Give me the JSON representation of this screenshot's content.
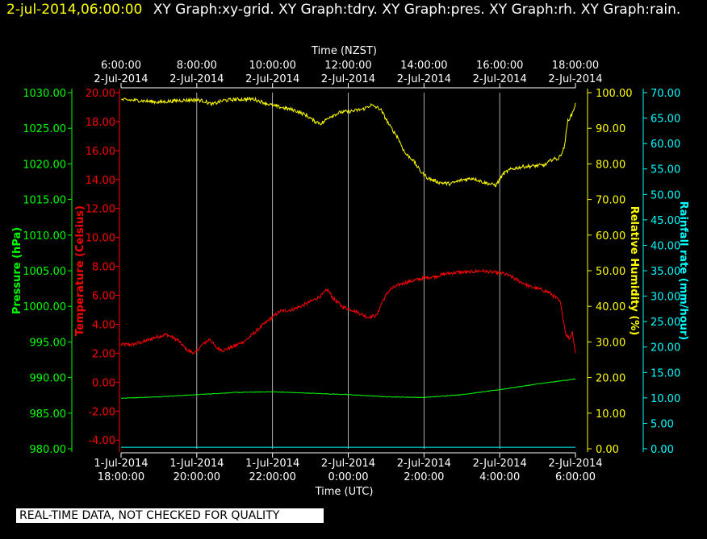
{
  "header": {
    "timestamp": "2-jul-2014,06:00:00",
    "graphs": "XY Graph:xy-grid.  XY Graph:tdry.  XY Graph:pres.  XY Graph:rh.  XY Graph:rain."
  },
  "status_text": "REAL-TIME DATA, NOT CHECKED FOR QUALITY",
  "colors": {
    "background": "#000000",
    "pressure": "#00ff00",
    "temperature": "#ff0000",
    "humidity": "#ffff00",
    "rainfall": "#00ffff",
    "grid": "#ffffff",
    "axis_text": "#ffffff"
  },
  "chart_data": {
    "type": "line",
    "grid": true,
    "top_axis": {
      "label": "Time (NZST)",
      "ticks": [
        {
          "t": 0,
          "line1": "6:00:00",
          "line2": "2-Jul-2014"
        },
        {
          "t": 2,
          "line1": "8:00:00",
          "line2": "2-Jul-2014"
        },
        {
          "t": 4,
          "line1": "10:00:00",
          "line2": "2-Jul-2014"
        },
        {
          "t": 6,
          "line1": "12:00:00",
          "line2": "2-Jul-2014"
        },
        {
          "t": 8,
          "line1": "14:00:00",
          "line2": "2-Jul-2014"
        },
        {
          "t": 10,
          "line1": "16:00:00",
          "line2": "2-Jul-2014"
        },
        {
          "t": 12,
          "line1": "18:00:00",
          "line2": "2-Jul-2014"
        }
      ]
    },
    "bottom_axis": {
      "label": "Time (UTC)",
      "ticks": [
        {
          "t": 0,
          "line1": "1-Jul-2014",
          "line2": "18:00:00"
        },
        {
          "t": 2,
          "line1": "1-Jul-2014",
          "line2": "20:00:00"
        },
        {
          "t": 4,
          "line1": "1-Jul-2014",
          "line2": "22:00:00"
        },
        {
          "t": 6,
          "line1": "2-Jul-2014",
          "line2": "0:00:00"
        },
        {
          "t": 8,
          "line1": "2-Jul-2014",
          "line2": "2:00:00"
        },
        {
          "t": 10,
          "line1": "2-Jul-2014",
          "line2": "4:00:00"
        },
        {
          "t": 12,
          "line1": "2-Jul-2014",
          "line2": "6:00:00"
        }
      ],
      "xlim": [
        0,
        12
      ]
    },
    "axes": {
      "pressure": {
        "label": "Pressure (hPa)",
        "ylim": [
          980,
          1030
        ],
        "step": 5,
        "tick_labels": [
          "980.00",
          "985.00",
          "990.00",
          "995.00",
          "1000.00",
          "1005.00",
          "1010.00",
          "1015.00",
          "1020.00",
          "1025.00",
          "1030.00"
        ]
      },
      "temperature": {
        "label": "Temperature (Celsius)",
        "ylim": [
          -4.6,
          20
        ],
        "ticks_from": -4,
        "step": 2,
        "tick_labels": [
          "-4.00",
          "-2.00",
          "0.00",
          "2.00",
          "4.00",
          "6.00",
          "8.00",
          "10.00",
          "12.00",
          "14.00",
          "16.00",
          "18.00",
          "20.00"
        ]
      },
      "humidity": {
        "label": "Relative Humidity (%)",
        "ylim": [
          0,
          100
        ],
        "step": 10,
        "tick_labels": [
          "0.00",
          "10.00",
          "20.00",
          "30.00",
          "40.00",
          "50.00",
          "60.00",
          "70.00",
          "80.00",
          "90.00",
          "100.00"
        ]
      },
      "rainfall": {
        "label": "Rainfall rate (mm/hour)",
        "ylim": [
          0,
          70
        ],
        "step": 5,
        "tick_labels": [
          "0.00",
          "5.00",
          "10.00",
          "15.00",
          "20.00",
          "25.00",
          "30.00",
          "35.00",
          "40.00",
          "45.00",
          "50.00",
          "55.00",
          "60.00",
          "65.00",
          "70.00"
        ]
      }
    },
    "series": [
      {
        "key": "temperature",
        "color": "#ff0000",
        "noise": 0.12,
        "points": [
          [
            0,
            2.6
          ],
          [
            0.3,
            2.6
          ],
          [
            0.6,
            2.8
          ],
          [
            0.9,
            3.1
          ],
          [
            1.2,
            3.3
          ],
          [
            1.5,
            2.9
          ],
          [
            1.75,
            2.2
          ],
          [
            1.95,
            2.0
          ],
          [
            2.15,
            2.6
          ],
          [
            2.35,
            3.0
          ],
          [
            2.5,
            2.4
          ],
          [
            2.7,
            2.2
          ],
          [
            3.0,
            2.5
          ],
          [
            3.3,
            2.9
          ],
          [
            3.6,
            3.6
          ],
          [
            3.9,
            4.3
          ],
          [
            4.2,
            4.9
          ],
          [
            4.5,
            5.0
          ],
          [
            4.8,
            5.3
          ],
          [
            5.1,
            5.7
          ],
          [
            5.3,
            6.0
          ],
          [
            5.45,
            6.4
          ],
          [
            5.6,
            5.8
          ],
          [
            5.85,
            5.2
          ],
          [
            6.1,
            5.0
          ],
          [
            6.35,
            4.7
          ],
          [
            6.5,
            4.5
          ],
          [
            6.75,
            4.6
          ],
          [
            6.9,
            5.6
          ],
          [
            7.1,
            6.4
          ],
          [
            7.4,
            6.8
          ],
          [
            7.7,
            7.0
          ],
          [
            8.0,
            7.2
          ],
          [
            8.3,
            7.3
          ],
          [
            8.6,
            7.5
          ],
          [
            8.9,
            7.6
          ],
          [
            9.2,
            7.6
          ],
          [
            9.5,
            7.7
          ],
          [
            9.8,
            7.6
          ],
          [
            10.1,
            7.5
          ],
          [
            10.3,
            7.3
          ],
          [
            10.5,
            7.0
          ],
          [
            10.8,
            6.6
          ],
          [
            11.1,
            6.4
          ],
          [
            11.3,
            6.2
          ],
          [
            11.5,
            5.8
          ],
          [
            11.6,
            5.5
          ],
          [
            11.75,
            3.3
          ],
          [
            11.85,
            3.0
          ],
          [
            11.92,
            3.5
          ],
          [
            12.0,
            2.0
          ]
        ]
      },
      {
        "key": "pressure",
        "color": "#00ff00",
        "noise": 0.04,
        "points": [
          [
            0,
            987.1
          ],
          [
            1.0,
            987.3
          ],
          [
            2.0,
            987.6
          ],
          [
            3.0,
            987.9
          ],
          [
            4.0,
            988.0
          ],
          [
            5.0,
            987.8
          ],
          [
            6.0,
            987.6
          ],
          [
            7.0,
            987.3
          ],
          [
            8.0,
            987.2
          ],
          [
            9.0,
            987.6
          ],
          [
            10.0,
            988.3
          ],
          [
            11.0,
            989.1
          ],
          [
            12.0,
            989.8
          ]
        ]
      },
      {
        "key": "humidity",
        "color": "#ffff00",
        "noise": 0.5,
        "points": [
          [
            0,
            98.0
          ],
          [
            0.5,
            97.8
          ],
          [
            1.0,
            97.3
          ],
          [
            1.5,
            97.8
          ],
          [
            2.0,
            98.0
          ],
          [
            2.2,
            97.6
          ],
          [
            2.4,
            96.7
          ],
          [
            2.7,
            97.8
          ],
          [
            3.0,
            98.1
          ],
          [
            3.5,
            98.2
          ],
          [
            4.0,
            96.4
          ],
          [
            4.3,
            95.7
          ],
          [
            4.6,
            95.0
          ],
          [
            4.9,
            93.6
          ],
          [
            5.1,
            92.0
          ],
          [
            5.3,
            91.3
          ],
          [
            5.5,
            93.2
          ],
          [
            5.8,
            94.5
          ],
          [
            6.1,
            94.8
          ],
          [
            6.4,
            95.4
          ],
          [
            6.6,
            96.5
          ],
          [
            6.85,
            95.4
          ],
          [
            7.1,
            90.6
          ],
          [
            7.3,
            87.6
          ],
          [
            7.5,
            83.0
          ],
          [
            7.7,
            81.2
          ],
          [
            7.9,
            78.0
          ],
          [
            8.1,
            76.0
          ],
          [
            8.4,
            74.8
          ],
          [
            8.7,
            74.4
          ],
          [
            9.0,
            75.5
          ],
          [
            9.3,
            76.0
          ],
          [
            9.6,
            74.7
          ],
          [
            9.9,
            74.0
          ],
          [
            10.1,
            77.3
          ],
          [
            10.3,
            78.5
          ],
          [
            10.6,
            79.2
          ],
          [
            10.9,
            79.4
          ],
          [
            11.2,
            79.7
          ],
          [
            11.4,
            81.4
          ],
          [
            11.55,
            81.4
          ],
          [
            11.7,
            84.4
          ],
          [
            11.8,
            92.2
          ],
          [
            11.9,
            93.7
          ],
          [
            12.0,
            96.8
          ]
        ]
      },
      {
        "key": "rainfall",
        "color": "#00ffff",
        "noise": 0,
        "points": [
          [
            0,
            0.3
          ],
          [
            12,
            0.3
          ]
        ]
      }
    ]
  }
}
